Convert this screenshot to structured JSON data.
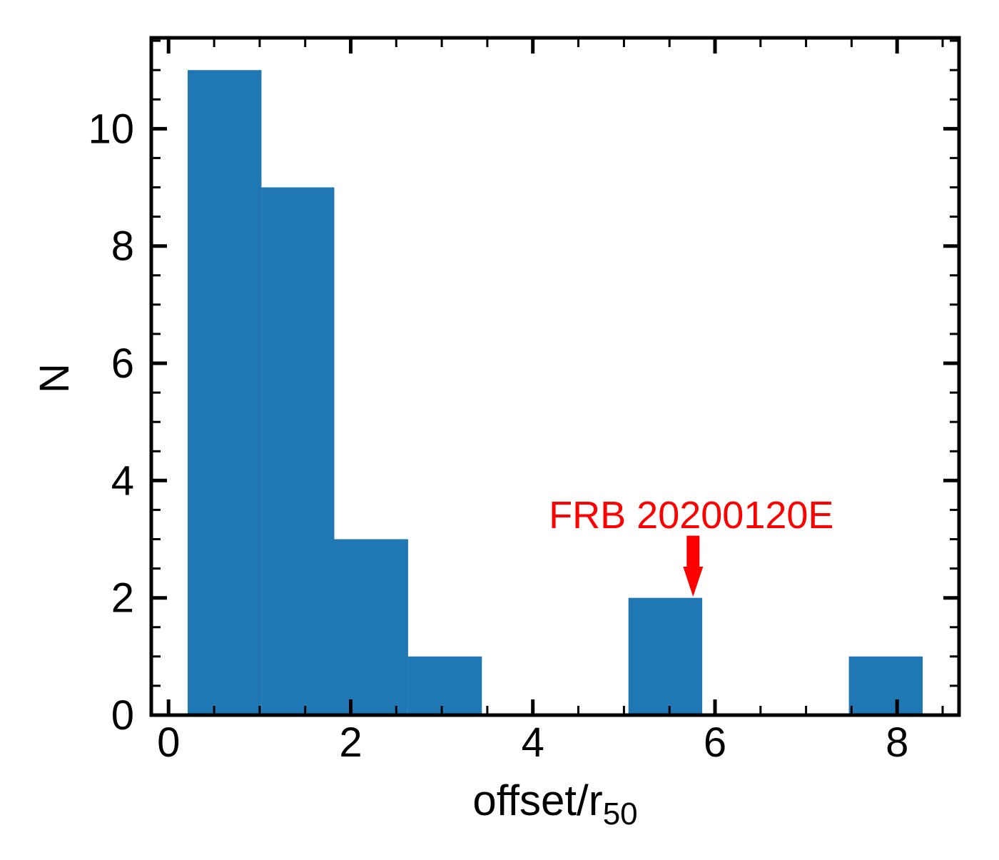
{
  "figure": {
    "background": "#ffffff",
    "text_color": "#000000"
  },
  "chart_data": {
    "type": "bar",
    "subtype": "histogram",
    "title": "",
    "xlabel_main": "offset/r",
    "xlabel_sub": "50",
    "ylabel": "N",
    "bin_edges": [
      0.21,
      1.02,
      1.82,
      2.63,
      3.44,
      4.25,
      5.05,
      5.86,
      6.67,
      7.47,
      8.28
    ],
    "counts": [
      11,
      9,
      3,
      1,
      0,
      0,
      2,
      0,
      0,
      1
    ],
    "bar_color": "#1f77b4",
    "xlim": [
      -0.19,
      8.68
    ],
    "ylim": [
      0,
      11.55
    ],
    "x_major_ticks": [
      0,
      2,
      4,
      6,
      8
    ],
    "y_major_ticks": [
      0,
      2,
      4,
      6,
      8,
      10
    ],
    "minor_tick_step": 0.5,
    "grid": false,
    "legend": "none",
    "tick_direction": "in",
    "annotation": {
      "label": "FRB 20200120E",
      "color": "#ff0000",
      "arrow_tip": {
        "x": 5.76,
        "y": 2.02
      },
      "arrow_tail": {
        "x": 5.76,
        "y": 3.06
      },
      "text_center": {
        "x": 5.74,
        "y": 3.42
      }
    }
  }
}
